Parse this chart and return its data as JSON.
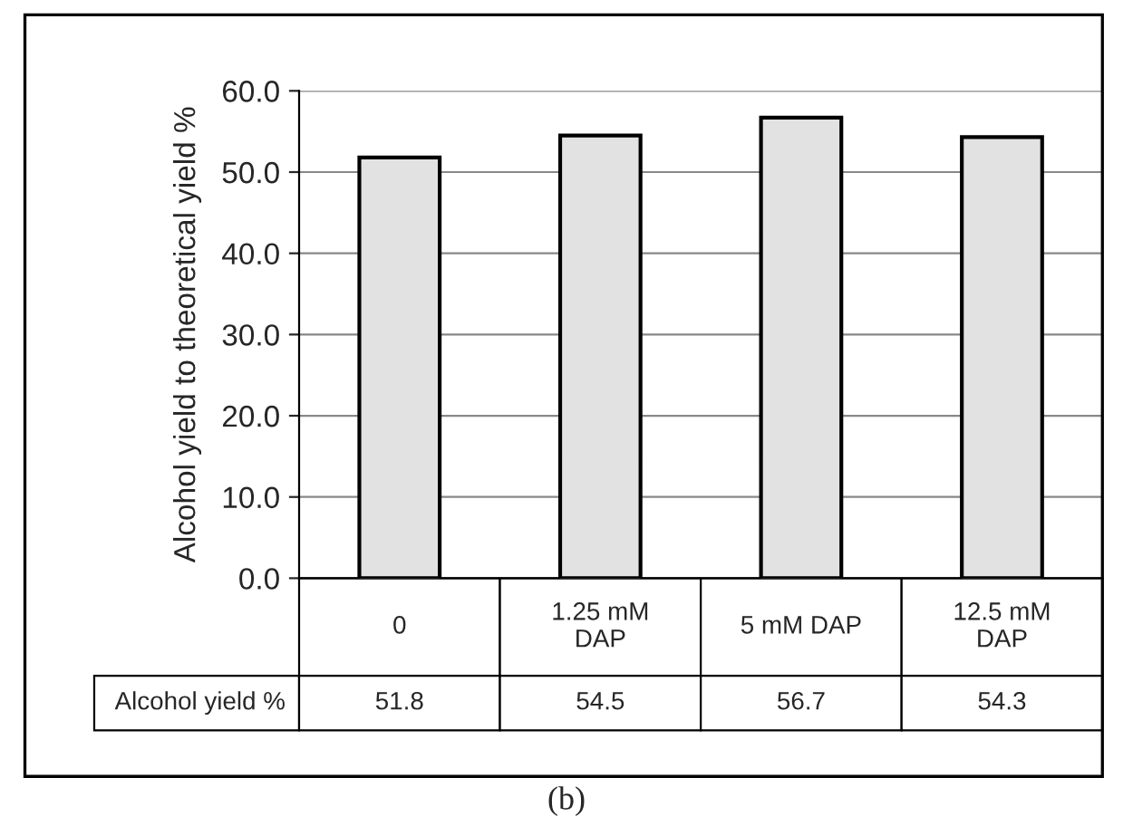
{
  "chart_data": {
    "type": "bar",
    "categories": [
      "0",
      "1.25 mM DAP",
      "5 mM DAP",
      "12.5 mM DAP"
    ],
    "series": [
      {
        "name": "Alcohol yield %",
        "color": "#e2e2e2",
        "values": [
          51.8,
          54.5,
          56.7,
          54.3
        ]
      }
    ],
    "ylabel": "Alcohol yield to theoretical yield %",
    "ylim": [
      0,
      60
    ],
    "yticks": [
      {
        "value": 0,
        "label": "0.0"
      },
      {
        "value": 10,
        "label": "10.0"
      },
      {
        "value": 20,
        "label": "20.0"
      },
      {
        "value": 30,
        "label": "30.0"
      },
      {
        "value": 40,
        "label": "40.0"
      },
      {
        "value": 50,
        "label": "50.0"
      },
      {
        "value": 60,
        "label": "60.0"
      }
    ],
    "grid": "y",
    "data_labels": true,
    "annotations": [
      "(b)"
    ]
  }
}
